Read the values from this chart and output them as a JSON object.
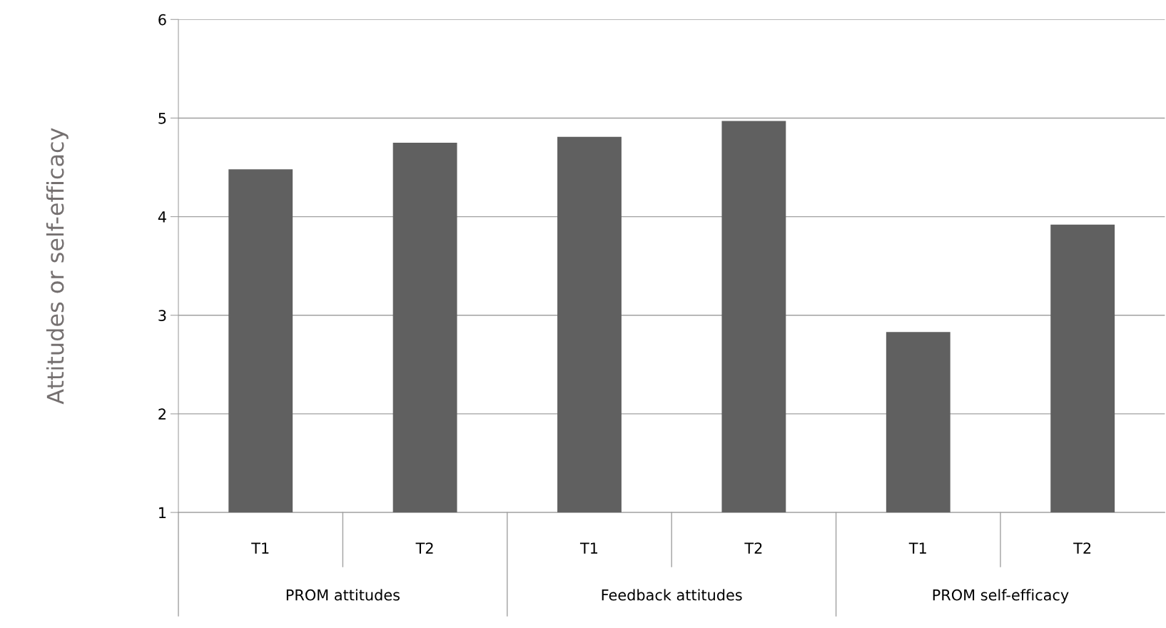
{
  "chart_data": {
    "type": "bar",
    "ylabel": "Attitudes or self-efficacy",
    "categories": [
      "T1",
      "T2",
      "T1",
      "T2",
      "T1",
      "T2"
    ],
    "values": [
      4.48,
      4.75,
      4.81,
      4.97,
      2.83,
      3.92
    ],
    "color": "#606060",
    "annotations": [
      "PROM attitudes",
      "Feedback attitudes",
      "PROM self-efficacy"
    ],
    "ylim": [
      1,
      6
    ],
    "yticks": [
      1,
      2,
      3,
      4,
      5,
      6
    ],
    "grid": "y",
    "legend": false
  }
}
